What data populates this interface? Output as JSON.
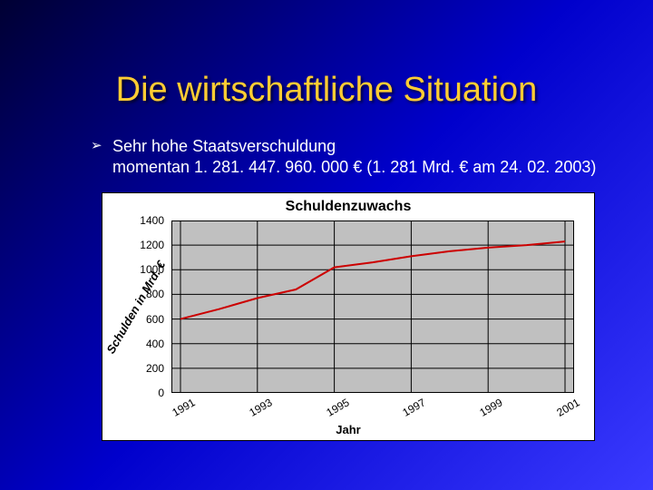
{
  "slide": {
    "title": "Die wirtschaftliche Situation",
    "bullet": {
      "glyph": "➢",
      "line1": "Sehr hohe Staatsverschuldung",
      "line2": "momentan 1. 281. 447. 960. 000 € (1. 281 Mrd. € am 24. 02. 2003)"
    }
  },
  "chart": {
    "type": "line",
    "title": "Schuldenzuwachs",
    "x_label": "Jahr",
    "y_label": "Schulden in Mrd. €",
    "x_years": [
      1991,
      1992,
      1993,
      1994,
      1995,
      1996,
      1997,
      1998,
      1999,
      2000,
      2001
    ],
    "x_tick_labels": [
      "1991",
      "1993",
      "1995",
      "1997",
      "1999",
      "2001"
    ],
    "values": [
      600,
      680,
      770,
      840,
      1020,
      1060,
      1110,
      1150,
      1180,
      1200,
      1230
    ],
    "xlim": [
      1991,
      2001
    ],
    "ylim": [
      0,
      1400
    ],
    "y_ticks": [
      0,
      200,
      400,
      600,
      800,
      1000,
      1200,
      1400
    ],
    "line_color": "#cc0000",
    "line_width": 2,
    "grid_color": "#000000",
    "plot_bg": "#c0c0c0",
    "card_bg": "#ffffff",
    "title_fontsize": 16,
    "label_fontsize": 13,
    "tick_fontsize": 12
  },
  "theme": {
    "title_color": "#ffcc33",
    "body_text_color": "#ffffff",
    "bg_gradient_from": "#000033",
    "bg_gradient_mid": "#0000cc",
    "bg_gradient_to": "#3a3aff"
  }
}
